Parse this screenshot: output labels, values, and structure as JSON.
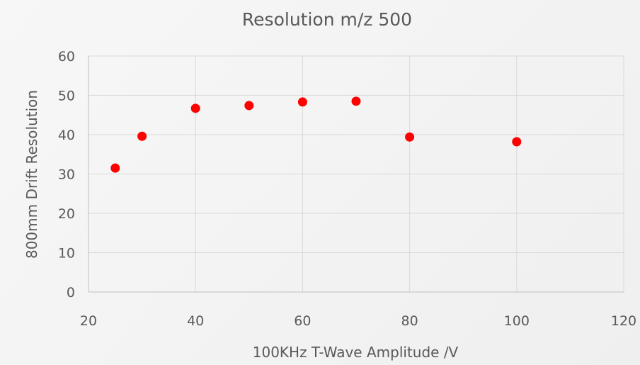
{
  "chart_data": {
    "type": "scatter",
    "title": "Resolution m/z 500",
    "xlabel": "100KHz T-Wave Amplitude /V",
    "ylabel": "800mm Drift Resolution",
    "xlim": [
      20,
      120
    ],
    "ylim": [
      0,
      60
    ],
    "xticks": [
      20,
      40,
      60,
      80,
      100,
      120
    ],
    "yticks": [
      0,
      10,
      20,
      30,
      40,
      50,
      60
    ],
    "grid": true,
    "legend": "none",
    "marker_color": "#ff0000",
    "series": [
      {
        "x": [
          25,
          30,
          40,
          50,
          60,
          70,
          80,
          100
        ],
        "y": [
          31.5,
          39.6,
          46.7,
          47.4,
          48.3,
          48.5,
          39.4,
          38.2
        ]
      }
    ]
  }
}
